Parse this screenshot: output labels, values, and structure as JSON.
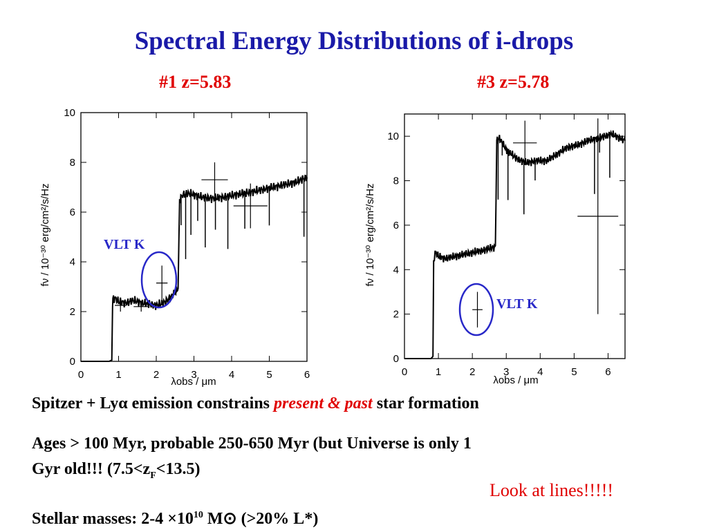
{
  "slide": {
    "title": "Spectral Energy Distributions of i-drops",
    "left_label": "#1 z=5.83",
    "right_label": "#3 z=5.78",
    "bullet1": {
      "a": "Spitzer + Ly",
      "alpha": "α",
      "b": " emission constrains ",
      "em": "present & past",
      "c": " star formation"
    },
    "bullet2": {
      "line1": "Ages > 100 Myr, probable 250-650 Myr (but Universe is only 1",
      "line2a": "Gyr old!!! (7.5<z",
      "sub": "F",
      "line2b": "<13.5)"
    },
    "bullet3": {
      "a": "Stellar masses: 2-4 ×10",
      "sup": "10",
      "b": " M",
      "sun": "⊙",
      "c": " (>20% L*)"
    },
    "note": "Look at lines!!!!!"
  },
  "colors": {
    "title": "#1a1aa8",
    "accent": "#e00000",
    "circle": "#2828c8",
    "data": "#000000"
  },
  "chart_data": [
    {
      "type": "line",
      "label": "#1 z=5.83",
      "xlabel": "λobs / μm",
      "ylabel": "fν / 10⁻³⁰ erg/cm²/s/Hz",
      "xlim": [
        0,
        6
      ],
      "ylim": [
        0,
        10
      ],
      "xticks": [
        "0",
        "1",
        "2",
        "3",
        "4",
        "5",
        "6"
      ],
      "yticks": [
        "0",
        "2",
        "4",
        "6",
        "8",
        "10"
      ],
      "grid": false,
      "annotation": "VLT K",
      "spectrum": [
        [
          0.0,
          0.0
        ],
        [
          0.75,
          0.0
        ],
        [
          0.82,
          0.05
        ],
        [
          0.84,
          2.1
        ],
        [
          0.85,
          2.5
        ],
        [
          0.9,
          2.55
        ],
        [
          1.0,
          2.4
        ],
        [
          1.2,
          2.35
        ],
        [
          1.4,
          2.45
        ],
        [
          1.6,
          2.35
        ],
        [
          1.8,
          2.3
        ],
        [
          2.0,
          2.25
        ],
        [
          2.2,
          2.35
        ],
        [
          2.4,
          2.6
        ],
        [
          2.55,
          2.85
        ],
        [
          2.58,
          3.0
        ],
        [
          2.62,
          6.5
        ],
        [
          2.7,
          6.7
        ],
        [
          2.9,
          6.75
        ],
        [
          3.2,
          6.6
        ],
        [
          3.5,
          6.55
        ],
        [
          3.8,
          6.6
        ],
        [
          4.1,
          6.7
        ],
        [
          4.5,
          6.8
        ],
        [
          4.8,
          6.9
        ],
        [
          5.1,
          7.0
        ],
        [
          5.4,
          7.1
        ],
        [
          5.7,
          7.2
        ],
        [
          6.0,
          7.4
        ]
      ],
      "photometry": [
        {
          "x": 1.05,
          "y": 2.25,
          "xerr": 0.15,
          "yerr": 0.25
        },
        {
          "x": 1.6,
          "y": 2.2,
          "xerr": 0.2,
          "yerr": 0.2
        },
        {
          "x": 2.15,
          "y": 3.15,
          "xerr": 0.15,
          "yerr": 0.7
        },
        {
          "x": 3.55,
          "y": 7.3,
          "xerr": 0.35,
          "yerr": 0.7
        },
        {
          "x": 4.5,
          "y": 6.25,
          "xerr": 0.45,
          "yerr": 0.9
        }
      ]
    },
    {
      "type": "line",
      "label": "#3 z=5.78",
      "xlabel": "λobs / μm",
      "ylabel": "fν / 10⁻³⁰ erg/cm²/s/Hz",
      "xlim": [
        0,
        6.5
      ],
      "ylim": [
        0,
        11
      ],
      "xticks": [
        "0",
        "1",
        "2",
        "3",
        "4",
        "5",
        "6"
      ],
      "yticks": [
        "0",
        "2",
        "4",
        "6",
        "8",
        "10"
      ],
      "grid": false,
      "annotation": "VLT K",
      "spectrum": [
        [
          0.0,
          0.0
        ],
        [
          0.78,
          0.0
        ],
        [
          0.84,
          0.1
        ],
        [
          0.86,
          4.3
        ],
        [
          0.9,
          4.8
        ],
        [
          1.0,
          4.6
        ],
        [
          1.2,
          4.5
        ],
        [
          1.5,
          4.6
        ],
        [
          1.8,
          4.7
        ],
        [
          2.1,
          4.8
        ],
        [
          2.4,
          4.9
        ],
        [
          2.6,
          5.0
        ],
        [
          2.68,
          5.0
        ],
        [
          2.72,
          9.8
        ],
        [
          2.8,
          9.9
        ],
        [
          3.0,
          9.4
        ],
        [
          3.3,
          9.0
        ],
        [
          3.6,
          8.8
        ],
        [
          3.9,
          8.9
        ],
        [
          4.2,
          8.9
        ],
        [
          4.5,
          9.2
        ],
        [
          4.8,
          9.5
        ],
        [
          5.1,
          9.6
        ],
        [
          5.4,
          9.8
        ],
        [
          5.7,
          9.9
        ],
        [
          6.1,
          10.1
        ],
        [
          6.5,
          9.8
        ]
      ],
      "photometry": [
        {
          "x": 2.15,
          "y": 2.2,
          "xerr": 0.15,
          "yerr": 0.8
        },
        {
          "x": 3.55,
          "y": 9.7,
          "xerr": 0.35,
          "yerr": 1.0
        },
        {
          "x": 5.7,
          "y": 6.4,
          "xerr": 0.6,
          "yerr": 4.4
        }
      ]
    }
  ]
}
